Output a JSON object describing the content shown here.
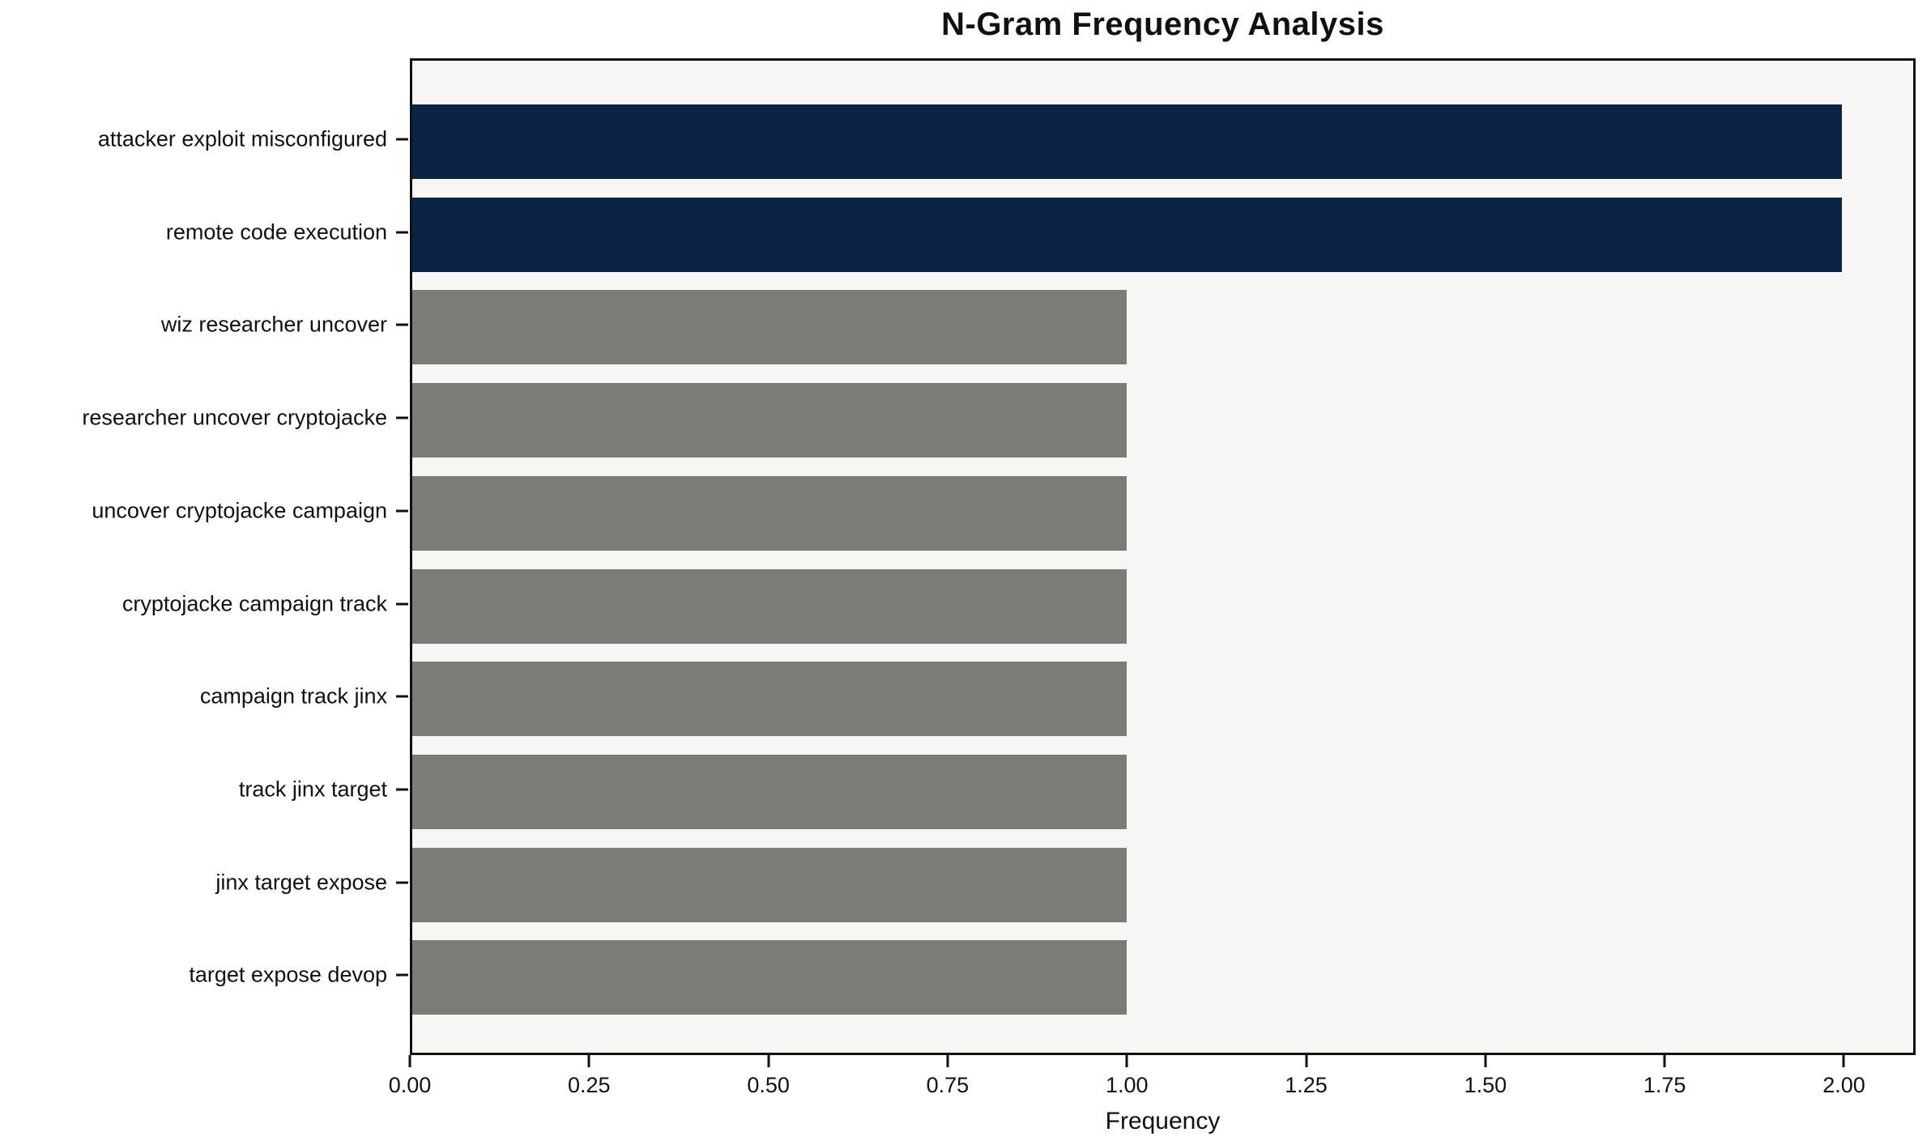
{
  "chart_data": {
    "type": "bar",
    "orientation": "horizontal",
    "title": "N-Gram Frequency Analysis",
    "xlabel": "Frequency",
    "ylabel": "",
    "categories": [
      "attacker exploit misconfigured",
      "remote code execution",
      "wiz researcher uncover",
      "researcher uncover cryptojacke",
      "uncover cryptojacke campaign",
      "cryptojacke campaign track",
      "campaign track jinx",
      "track jinx target",
      "jinx target expose",
      "target expose devop"
    ],
    "values": [
      2,
      2,
      1,
      1,
      1,
      1,
      1,
      1,
      1,
      1
    ],
    "bar_colors": [
      "#0b2345",
      "#0b2345",
      "#7c7b78",
      "#7c7b78",
      "#7c7b78",
      "#7c7b78",
      "#7c7b78",
      "#7c7b78",
      "#7c7b78",
      "#7c7b78"
    ],
    "xlim": [
      0,
      2.1
    ],
    "xticks": [
      "0.00",
      "0.25",
      "0.50",
      "0.75",
      "1.00",
      "1.25",
      "1.50",
      "1.75",
      "2.00"
    ],
    "xtick_values": [
      0,
      0.25,
      0.5,
      0.75,
      1.0,
      1.25,
      1.5,
      1.75,
      2.0
    ],
    "grid": false,
    "legend": null,
    "colors": {
      "highlight_bar": "#0b2345",
      "default_bar": "#7c7b78",
      "plot_background": "#f7f6f5",
      "figure_background": "#ffffff",
      "spine": "#111111",
      "text": "#111111"
    }
  }
}
